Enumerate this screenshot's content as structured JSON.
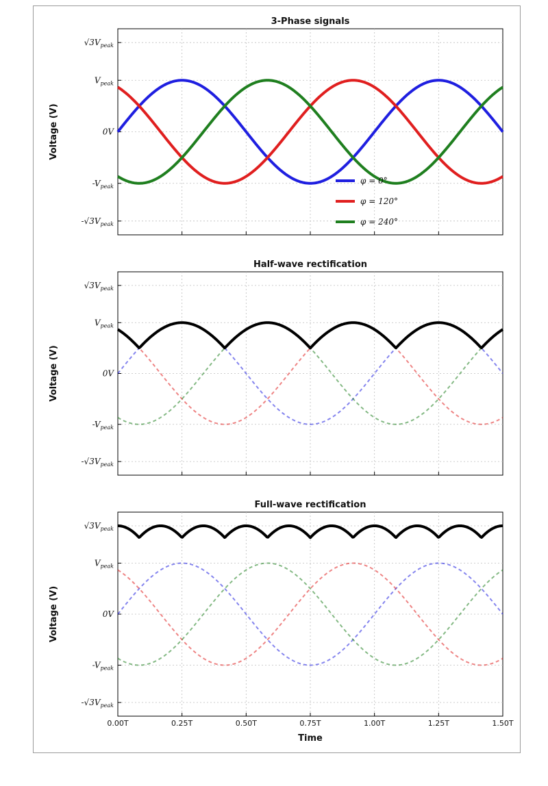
{
  "chart_data": [
    {
      "type": "line",
      "title": "3-Phase signals",
      "xlabel": "",
      "ylabel": "Voltage (V)",
      "x_range": [
        0,
        1.5
      ],
      "x_unit": "T",
      "ylim": [
        -2.0,
        2.0
      ],
      "y_ticks": [
        "√3V_peak",
        "V_peak",
        "0V",
        "-V_peak",
        "-√3V_peak"
      ],
      "y_tick_values": [
        1.732,
        1.0,
        0.0,
        -1.0,
        -1.732
      ],
      "grid": true,
      "legend_placement": "lower-right",
      "series": [
        {
          "name": "φ = 0°",
          "color": "#1f1fe0",
          "style": "solid",
          "phase_deg": 0,
          "amplitude": 1
        },
        {
          "name": "φ = 120°",
          "color": "#e01f1f",
          "style": "solid",
          "phase_deg": 120,
          "amplitude": 1
        },
        {
          "name": "φ = 240°",
          "color": "#1f7f1f",
          "style": "solid",
          "phase_deg": 240,
          "amplitude": 1
        }
      ]
    },
    {
      "type": "line",
      "title": "Half-wave rectification",
      "xlabel": "",
      "ylabel": "Voltage (V)",
      "x_range": [
        0,
        1.5
      ],
      "ylim": [
        -2.0,
        2.0
      ],
      "y_ticks": [
        "√3V_peak",
        "V_peak",
        "0V",
        "-V_peak",
        "-√3V_peak"
      ],
      "y_tick_values": [
        1.732,
        1.0,
        0.0,
        -1.0,
        -1.732
      ],
      "grid": true,
      "series": [
        {
          "name": "",
          "color": "#1f1fe0",
          "style": "dashed",
          "phase_deg": 0,
          "amplitude": 1
        },
        {
          "name": "",
          "color": "#e01f1f",
          "style": "dashed",
          "phase_deg": 120,
          "amplitude": 1
        },
        {
          "name": "",
          "color": "#1f7f1f",
          "style": "dashed",
          "phase_deg": 240,
          "amplitude": 1
        },
        {
          "name": "",
          "color": "#000000",
          "style": "solid",
          "derived": "max of phases"
        }
      ]
    },
    {
      "type": "line",
      "title": "Full-wave rectification",
      "xlabel": "Time",
      "ylabel": "Voltage (V)",
      "x_range": [
        0,
        1.5
      ],
      "x_ticks": [
        "0.00T",
        "0.25T",
        "0.50T",
        "0.75T",
        "1.00T",
        "1.25T",
        "1.50T"
      ],
      "x_tick_values": [
        0,
        0.25,
        0.5,
        0.75,
        1.0,
        1.25,
        1.5
      ],
      "ylim": [
        -2.0,
        2.0
      ],
      "y_ticks": [
        "√3V_peak",
        "V_peak",
        "0V",
        "-V_peak",
        "-√3V_peak"
      ],
      "y_tick_values": [
        1.732,
        1.0,
        0.0,
        -1.0,
        -1.732
      ],
      "grid": true,
      "series": [
        {
          "name": "",
          "color": "#1f1fe0",
          "style": "dashed",
          "phase_deg": 0,
          "amplitude": 1
        },
        {
          "name": "",
          "color": "#e01f1f",
          "style": "dashed",
          "phase_deg": 120,
          "amplitude": 1
        },
        {
          "name": "",
          "color": "#1f7f1f",
          "style": "dashed",
          "phase_deg": 240,
          "amplitude": 1
        },
        {
          "name": "",
          "color": "#000000",
          "style": "solid",
          "derived": "max minus min of phases"
        }
      ]
    }
  ]
}
